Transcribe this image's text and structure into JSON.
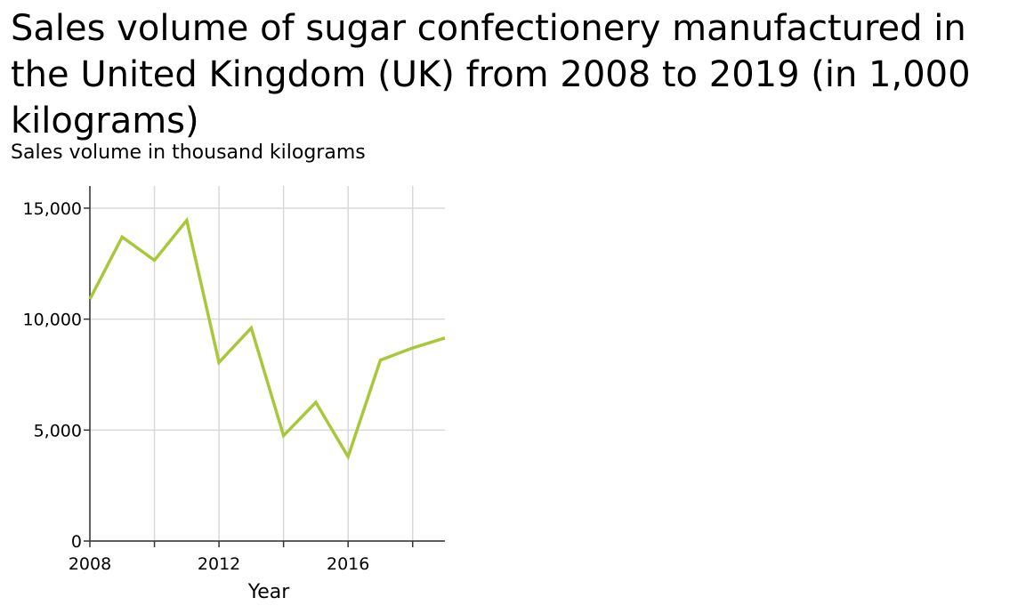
{
  "chart_data": {
    "type": "line",
    "title": "Sales volume of sugar confectionery manufactured in the United Kingdom (UK) from 2008 to 2019 (in 1,000 kilograms)",
    "ylabel": "Sales volume in thousand kilograms",
    "xlabel": "Year",
    "x": [
      2008,
      2009,
      2010,
      2011,
      2012,
      2013,
      2014,
      2015,
      2016,
      2017,
      2018,
      2019
    ],
    "series": [
      {
        "values": [
          10900,
          13700,
          12650,
          14450,
          8050,
          9600,
          4750,
          6250,
          3800,
          8150,
          8700,
          9150
        ]
      }
    ],
    "xlim": [
      2008,
      2019
    ],
    "ylim": [
      0,
      16000
    ],
    "xticks": [
      2008,
      2010,
      2012,
      2014,
      2016,
      2018
    ],
    "xtick_labels": [
      "2008",
      "",
      "2012",
      "",
      "2016",
      ""
    ],
    "yticks": [
      0,
      5000,
      10000,
      15000
    ],
    "ytick_labels": [
      "0",
      "5,000",
      "10,000",
      "15,000"
    ],
    "grid": true,
    "line_color": "#a8c83a",
    "grid_color": "#d8d8d8"
  }
}
